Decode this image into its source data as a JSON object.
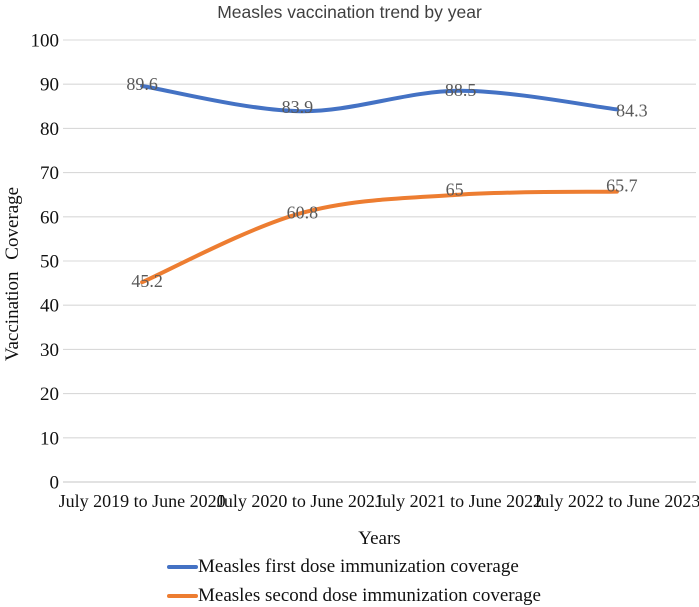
{
  "chart_data": {
    "type": "line",
    "title": "Measles vaccination trend by year",
    "xlabel": "Years",
    "ylabel": "Vaccination Coverage",
    "categories": [
      "July 2019 to June 2020",
      "July 2020 to June 2021",
      "July 2021 to June 2022",
      "July 2022 to June 2023"
    ],
    "series": [
      {
        "name": "Measles first dose immunization coverage",
        "color": "#4472C4",
        "values": [
          89.6,
          83.9,
          88.5,
          84.3
        ]
      },
      {
        "name": "Measles second dose immunization coverage",
        "color": "#ED7D31",
        "values": [
          45.2,
          60.8,
          65,
          65.7
        ]
      }
    ],
    "ylim": [
      0,
      100
    ],
    "ytick_step": 10,
    "ytick_labels": [
      "0",
      "10",
      "20",
      "30",
      "40",
      "50",
      "60",
      "70",
      "80",
      "90",
      "100"
    ],
    "grid": true,
    "legend_position": "bottom-left",
    "data_label_color": "#595959",
    "gridline_color": "#D9D9D9",
    "axis_line_color": "#C6C6C6"
  }
}
